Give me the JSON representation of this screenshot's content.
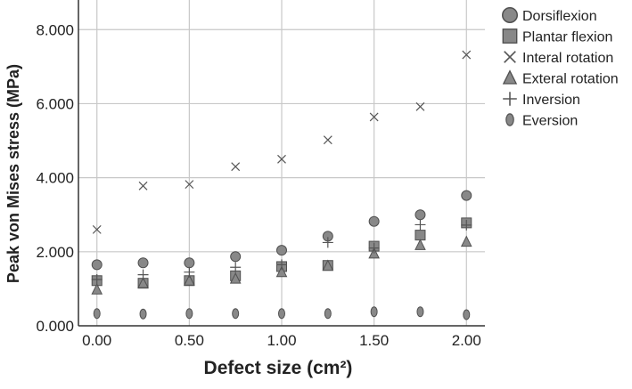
{
  "chart_data": {
    "type": "scatter",
    "title": "",
    "xlabel": "Defect size (cm²)",
    "ylabel": "Peak von Mises stress (MPa)",
    "xlim": [
      -0.1,
      2.1
    ],
    "ylim": [
      0,
      8.8
    ],
    "x_ticks": [
      0.0,
      0.5,
      1.0,
      1.5,
      2.0
    ],
    "x_tick_labels": [
      "0.00",
      "0.50",
      "1.00",
      "1.50",
      "2.00"
    ],
    "y_ticks": [
      0,
      2,
      4,
      6,
      8
    ],
    "y_tick_labels": [
      "0.000",
      "2.000",
      "4.000",
      "6.000",
      "8.000"
    ],
    "grid": true,
    "legend_position": "right",
    "x": [
      0.0,
      0.25,
      0.5,
      0.75,
      1.0,
      1.25,
      1.5,
      1.75,
      2.0
    ],
    "series": [
      {
        "name": "Dorsiflexion",
        "marker": "circle",
        "values": [
          1.65,
          1.7,
          1.7,
          1.87,
          2.04,
          2.42,
          2.82,
          3.0,
          3.52
        ]
      },
      {
        "name": "Plantar flexion",
        "marker": "square",
        "values": [
          1.22,
          1.15,
          1.22,
          1.35,
          1.6,
          1.63,
          2.15,
          2.45,
          2.78
        ]
      },
      {
        "name": "Interal rotation",
        "marker": "x",
        "values": [
          2.6,
          3.78,
          3.82,
          4.3,
          4.5,
          5.02,
          5.64,
          5.92,
          7.32
        ]
      },
      {
        "name": "Exteral rotation",
        "marker": "triangle",
        "values": [
          0.98,
          1.15,
          1.22,
          1.27,
          1.45,
          1.62,
          1.95,
          2.18,
          2.27
        ]
      },
      {
        "name": "Inversion",
        "marker": "plus",
        "values": [
          1.25,
          1.38,
          1.45,
          1.58,
          1.65,
          2.25,
          2.1,
          2.73,
          2.72
        ]
      },
      {
        "name": "Eversion",
        "marker": "ellipse",
        "values": [
          0.33,
          0.32,
          0.33,
          0.33,
          0.33,
          0.33,
          0.38,
          0.38,
          0.3
        ]
      }
    ]
  },
  "colors": {
    "marker_fill": "#888888",
    "marker_stroke": "#505050",
    "grid": "#c8c8c8",
    "axis": "#333333",
    "text": "#222222"
  }
}
